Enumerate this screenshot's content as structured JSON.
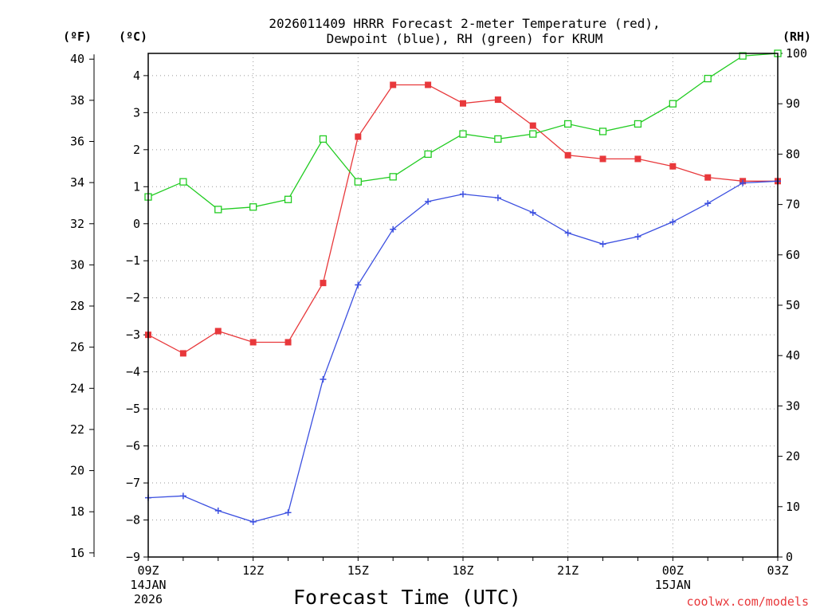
{
  "title": {
    "line1": "2026011409 HRRR Forecast 2-meter Temperature (red),",
    "line2": "Dewpoint (blue), RH (green) for KRUM"
  },
  "units": {
    "f": "(ºF)",
    "c": "(ºC)",
    "rh": "(RH)"
  },
  "credit": "coolwx.com/models",
  "chart_data": {
    "type": "line",
    "xlabel": "Forecast Time (UTC)",
    "x": [
      "09Z",
      "10Z",
      "11Z",
      "12Z",
      "13Z",
      "14Z",
      "15Z",
      "16Z",
      "17Z",
      "18Z",
      "19Z",
      "20Z",
      "21Z",
      "22Z",
      "23Z",
      "00Z",
      "01Z",
      "02Z",
      "03Z"
    ],
    "x_ticks": [
      {
        "index": 0,
        "lines": [
          "09Z",
          "14JAN",
          "2026"
        ]
      },
      {
        "index": 3,
        "lines": [
          "12Z"
        ]
      },
      {
        "index": 6,
        "lines": [
          "15Z"
        ]
      },
      {
        "index": 9,
        "lines": [
          "18Z"
        ]
      },
      {
        "index": 12,
        "lines": [
          "21Z"
        ]
      },
      {
        "index": 15,
        "lines": [
          "00Z",
          "15JAN"
        ]
      },
      {
        "index": 18,
        "lines": [
          "03Z"
        ]
      }
    ],
    "y_celsius": {
      "min": -9,
      "max": 4.6,
      "ticks": [
        4,
        3,
        2,
        1,
        0,
        -1,
        -2,
        -3,
        -4,
        -5,
        -6,
        -7,
        -8,
        -9
      ]
    },
    "y_fahrenheit": {
      "ticks": [
        40,
        38,
        36,
        34,
        32,
        30,
        28,
        26,
        24,
        22,
        20,
        18,
        16
      ]
    },
    "y_rh": {
      "min": 0,
      "max": 100,
      "ticks": [
        0,
        10,
        20,
        30,
        40,
        50,
        60,
        70,
        80,
        90,
        100
      ]
    },
    "grid": true,
    "series": [
      {
        "key": "temperature",
        "color": "#e8383b",
        "marker": "filled-square",
        "axis": "celsius",
        "values": [
          -3.0,
          -3.5,
          -2.9,
          -3.2,
          -3.2,
          -1.6,
          2.35,
          3.75,
          3.75,
          3.25,
          3.35,
          2.65,
          1.85,
          1.75,
          1.75,
          1.55,
          1.25,
          1.15,
          1.15
        ]
      },
      {
        "key": "dewpoint",
        "color": "#3b4fe0",
        "marker": "plus",
        "axis": "celsius",
        "values": [
          -7.4,
          -7.35,
          -7.75,
          -8.05,
          -7.8,
          -4.2,
          -1.65,
          -0.15,
          0.6,
          0.8,
          0.7,
          0.3,
          -0.25,
          -0.55,
          -0.35,
          0.05,
          0.55,
          1.1,
          1.15
        ]
      },
      {
        "key": "rh",
        "color": "#22cc22",
        "marker": "open-square",
        "axis": "rh",
        "values": [
          71.5,
          74.5,
          69.0,
          69.5,
          71.0,
          83.0,
          74.5,
          75.5,
          80.0,
          84.0,
          83.0,
          84.0,
          86.0,
          84.5,
          86.0,
          90.0,
          95.0,
          99.5,
          100.0
        ]
      }
    ]
  }
}
